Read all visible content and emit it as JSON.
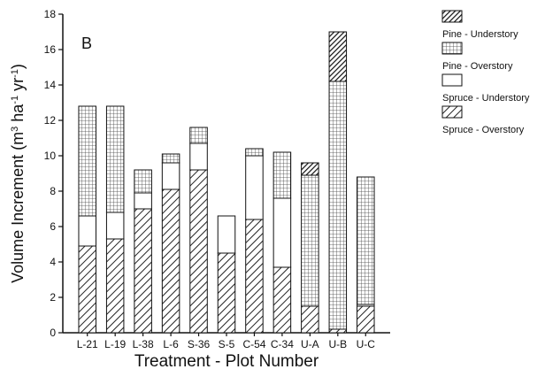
{
  "chart_data": {
    "type": "bar",
    "stacked": true,
    "panel_label": "B",
    "xlabel": "Treatment - Plot Number",
    "ylabel_main": "Volume Increment (m",
    "ylabel_unit_mid": " ha",
    "ylabel_unit_end": " yr",
    "ylabel_sup_3": "3",
    "ylabel_sup_neg1": "-1",
    "ylabel_close": ")",
    "ylim": [
      0,
      18
    ],
    "yticks": [
      "0",
      "2",
      "4",
      "6",
      "8",
      "10",
      "12",
      "14",
      "16",
      "18"
    ],
    "categories": [
      "L-21",
      "L-19",
      "L-38",
      "L-6",
      "S-36",
      "S-5",
      "C-54",
      "C-34",
      "U-A",
      "U-B",
      "U-C"
    ],
    "legend_position": "right",
    "series": [
      {
        "name": "Spruce - Overstory",
        "pattern": "diagonal-hatch",
        "values": [
          4.9,
          5.3,
          7.0,
          8.1,
          9.2,
          4.5,
          6.4,
          3.7,
          1.5,
          0.2,
          1.5
        ]
      },
      {
        "name": "Spruce - Understory",
        "pattern": "blank",
        "values": [
          1.7,
          1.5,
          0.9,
          1.5,
          1.5,
          2.1,
          3.6,
          3.9,
          0.0,
          0.0,
          0.1
        ]
      },
      {
        "name": "Pine - Overstory",
        "pattern": "grid",
        "values": [
          6.2,
          6.0,
          1.3,
          0.5,
          0.9,
          0.0,
          0.4,
          2.6,
          7.4,
          14.0,
          7.2
        ]
      },
      {
        "name": "Pine - Understory",
        "pattern": "dense-diagonal-hatch",
        "values": [
          0.0,
          0.0,
          0.0,
          0.0,
          0.0,
          0.0,
          0.0,
          0.0,
          0.7,
          2.8,
          0.0
        ]
      }
    ],
    "legend_order": [
      3,
      2,
      1,
      0
    ]
  }
}
